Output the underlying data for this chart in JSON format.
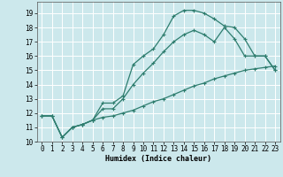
{
  "title": "",
  "xlabel": "Humidex (Indice chaleur)",
  "ylabel": "",
  "background_color": "#cce8ec",
  "grid_color": "#ffffff",
  "line_color": "#2e7d6e",
  "xlim": [
    -0.5,
    23.5
  ],
  "ylim": [
    10,
    19.8
  ],
  "xticks": [
    0,
    1,
    2,
    3,
    4,
    5,
    6,
    7,
    8,
    9,
    10,
    11,
    12,
    13,
    14,
    15,
    16,
    17,
    18,
    19,
    20,
    21,
    22,
    23
  ],
  "yticks": [
    10,
    11,
    12,
    13,
    14,
    15,
    16,
    17,
    18,
    19
  ],
  "line1_x": [
    0,
    1,
    2,
    3,
    4,
    5,
    6,
    7,
    8,
    9,
    10,
    11,
    12,
    13,
    14,
    15,
    16,
    17,
    18,
    19,
    20,
    21,
    22,
    23
  ],
  "line1_y": [
    11.8,
    11.8,
    10.3,
    11.0,
    11.2,
    11.5,
    12.7,
    12.7,
    13.2,
    15.4,
    16.0,
    16.5,
    17.5,
    18.8,
    19.2,
    19.2,
    19.0,
    18.6,
    18.1,
    18.0,
    17.2,
    16.0,
    16.0,
    15.0
  ],
  "line2_x": [
    0,
    1,
    2,
    3,
    4,
    5,
    6,
    7,
    8,
    9,
    10,
    11,
    12,
    13,
    14,
    15,
    16,
    17,
    18,
    19,
    20,
    21,
    22,
    23
  ],
  "line2_y": [
    11.8,
    11.8,
    10.3,
    11.0,
    11.2,
    11.5,
    12.3,
    12.3,
    13.0,
    14.0,
    14.8,
    15.5,
    16.3,
    17.0,
    17.5,
    17.8,
    17.5,
    17.0,
    18.0,
    17.2,
    16.0,
    16.0,
    16.0,
    15.0
  ],
  "line3_x": [
    0,
    1,
    2,
    3,
    4,
    5,
    6,
    7,
    8,
    9,
    10,
    11,
    12,
    13,
    14,
    15,
    16,
    17,
    18,
    19,
    20,
    21,
    22,
    23
  ],
  "line3_y": [
    11.8,
    11.8,
    10.3,
    11.0,
    11.2,
    11.5,
    11.7,
    11.8,
    12.0,
    12.2,
    12.5,
    12.8,
    13.0,
    13.3,
    13.6,
    13.9,
    14.1,
    14.4,
    14.6,
    14.8,
    15.0,
    15.1,
    15.2,
    15.3
  ]
}
